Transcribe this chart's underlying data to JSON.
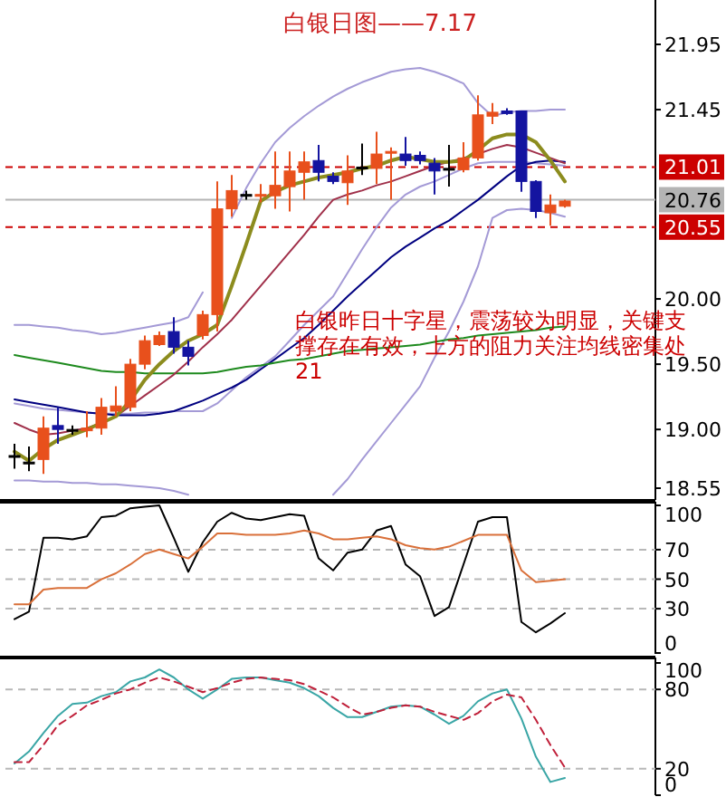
{
  "chart_data": [
    {
      "type": "candlestick",
      "title": "白银日图——7.17",
      "annotations": [
        "白银昨日十字星，震荡较为明显，关键支撑存在有效，上方的阻力关注均线密集处21"
      ],
      "categories": [
        null,
        null,
        null,
        null,
        null,
        null,
        null,
        null,
        null,
        null,
        null,
        null,
        null,
        null,
        null,
        null,
        null,
        null,
        null,
        null,
        null,
        null,
        null,
        null,
        null,
        null,
        null,
        null,
        null,
        null,
        null,
        null,
        null,
        null,
        null,
        null,
        null,
        null,
        null
      ],
      "ohlc": [
        [
          18.8,
          18.89,
          18.7,
          18.8
        ],
        [
          18.75,
          18.87,
          18.68,
          18.75
        ],
        [
          18.77,
          19.1,
          18.66,
          19.01
        ],
        [
          19.03,
          19.17,
          18.89,
          19.0
        ],
        [
          19.0,
          19.03,
          18.96,
          19.0
        ],
        [
          18.99,
          19.14,
          18.94,
          19.01
        ],
        [
          19.01,
          19.24,
          18.96,
          19.17
        ],
        [
          19.14,
          19.33,
          19.1,
          19.18
        ],
        [
          19.17,
          19.54,
          19.14,
          19.5
        ],
        [
          19.5,
          19.72,
          19.46,
          19.68
        ],
        [
          19.65,
          19.75,
          19.64,
          19.72
        ],
        [
          19.75,
          19.86,
          19.58,
          19.63
        ],
        [
          19.63,
          19.68,
          19.49,
          19.56
        ],
        [
          19.72,
          19.91,
          19.69,
          19.88
        ],
        [
          19.88,
          20.9,
          19.75,
          20.69
        ],
        [
          20.69,
          20.95,
          20.63,
          20.83
        ],
        [
          20.8,
          20.83,
          20.76,
          20.8
        ],
        [
          20.79,
          20.88,
          20.74,
          20.8
        ],
        [
          20.79,
          21.13,
          20.69,
          20.87
        ],
        [
          20.86,
          21.13,
          20.67,
          20.98
        ],
        [
          20.97,
          21.13,
          20.76,
          21.05
        ],
        [
          21.06,
          21.18,
          20.9,
          20.97
        ],
        [
          20.94,
          20.97,
          20.88,
          20.9
        ],
        [
          20.89,
          21.1,
          20.72,
          20.98
        ],
        [
          21.0,
          21.19,
          20.95,
          21.01
        ],
        [
          21.0,
          21.28,
          20.88,
          21.11
        ],
        [
          21.12,
          21.16,
          20.76,
          21.13
        ],
        [
          21.11,
          21.24,
          21.02,
          21.06
        ],
        [
          21.1,
          21.13,
          21.03,
          21.06
        ],
        [
          21.04,
          21.08,
          20.8,
          20.98
        ],
        [
          21.0,
          21.18,
          20.86,
          21.0
        ],
        [
          20.99,
          21.2,
          20.97,
          21.08
        ],
        [
          21.08,
          21.56,
          21.06,
          21.41
        ],
        [
          21.4,
          21.5,
          21.34,
          21.43
        ],
        [
          21.44,
          21.46,
          21.41,
          21.42
        ],
        [
          21.44,
          21.44,
          20.82,
          20.9
        ],
        [
          20.9,
          20.91,
          20.62,
          20.67
        ],
        [
          20.66,
          20.8,
          20.56,
          20.72
        ],
        [
          20.71,
          20.76,
          20.7,
          20.75
        ]
      ],
      "colors": [
        "#000000",
        "#000000",
        "#e8501c",
        "#1414a0",
        "#000000",
        "#e8501c",
        "#e8501c",
        "#e8501c",
        "#e8501c",
        "#e8501c",
        "#e8501c",
        "#1414a0",
        "#1414a0",
        "#e8501c",
        "#e8501c",
        "#e8501c",
        "#000000",
        "#e8501c",
        "#e8501c",
        "#e8501c",
        "#e8501c",
        "#1414a0",
        "#1414a0",
        "#e8501c",
        "#000000",
        "#e8501c",
        "#e8501c",
        "#1414a0",
        "#1414a0",
        "#1414a0",
        "#000000",
        "#e8501c",
        "#e8501c",
        "#e8501c",
        "#1414a0",
        "#1414a0",
        "#1414a0",
        "#e8501c",
        "#e8501c"
      ],
      "series": [
        {
          "type": "line",
          "color": "#a49ad6",
          "values": [
            19.8,
            19.8,
            19.79,
            19.78,
            19.76,
            19.75,
            19.73,
            19.74,
            19.76,
            19.78,
            19.8,
            19.82,
            19.86,
            20.05,
            null,
            20.62,
            20.85,
            21.04,
            21.2,
            21.31,
            21.4,
            21.48,
            21.55,
            21.61,
            21.66,
            21.7,
            21.74,
            21.76,
            21.77,
            21.74,
            21.7,
            21.65,
            21.5,
            21.4,
            21.43,
            21.44,
            21.44,
            21.45,
            21.45
          ]
        },
        {
          "type": "line",
          "color": "#a49ad6",
          "values": [
            19.2,
            19.18,
            19.16,
            19.15,
            19.14,
            19.13,
            19.12,
            19.12,
            19.12,
            19.13,
            19.13,
            19.14,
            19.14,
            19.14,
            19.2,
            19.3,
            19.4,
            19.48,
            19.56,
            19.68,
            19.8,
            19.91,
            20.02,
            20.2,
            20.38,
            20.55,
            20.7,
            20.8,
            20.86,
            20.9,
            20.95,
            21.0,
            21.04,
            21.05,
            21.05,
            21.05,
            21.04,
            21.03,
            21.02
          ]
        },
        {
          "type": "line",
          "color": "#a49ad6",
          "values": [
            18.61,
            18.61,
            18.6,
            18.6,
            18.59,
            18.59,
            18.58,
            18.58,
            18.57,
            18.56,
            18.55,
            18.53,
            18.5,
            null,
            null,
            null,
            null,
            null,
            null,
            null,
            null,
            null,
            18.5,
            18.62,
            18.77,
            18.91,
            19.05,
            19.19,
            19.33,
            19.55,
            19.75,
            19.98,
            20.25,
            20.62,
            20.68,
            20.69,
            20.68,
            20.66,
            20.63
          ]
        },
        {
          "type": "line",
          "color": "#000080",
          "values": [
            19.23,
            19.21,
            19.19,
            19.17,
            19.15,
            19.13,
            19.12,
            19.11,
            19.11,
            19.11,
            19.12,
            19.14,
            19.18,
            19.22,
            19.27,
            19.32,
            19.38,
            19.46,
            19.54,
            19.62,
            19.7,
            19.8,
            19.91,
            20.02,
            20.12,
            20.22,
            20.32,
            20.4,
            20.47,
            20.54,
            20.6,
            20.68,
            20.76,
            20.85,
            20.94,
            21.02,
            21.05,
            21.06,
            21.05
          ]
        },
        {
          "type": "line",
          "color": "#1e8a1e",
          "values": [
            19.57,
            19.55,
            19.53,
            19.51,
            19.49,
            19.47,
            19.45,
            19.44,
            19.44,
            19.43,
            19.43,
            19.43,
            19.43,
            19.43,
            19.44,
            19.46,
            19.48,
            19.49,
            19.51,
            19.53,
            19.54,
            19.56,
            19.58,
            19.6,
            19.61,
            19.62,
            19.63,
            19.64,
            19.65,
            19.67,
            19.69,
            19.7,
            19.72,
            19.73,
            19.74,
            19.75,
            19.76,
            19.78,
            19.79
          ]
        },
        {
          "type": "line",
          "color": "#a0304a",
          "values": [
            19.05,
            19.0,
            18.96,
            18.97,
            18.99,
            19.01,
            19.05,
            19.1,
            19.18,
            19.26,
            19.34,
            19.42,
            19.52,
            19.63,
            19.73,
            19.84,
            19.97,
            20.1,
            20.23,
            20.36,
            20.49,
            20.63,
            20.76,
            20.8,
            20.83,
            20.87,
            20.9,
            20.94,
            20.98,
            21.02,
            21.05,
            21.08,
            21.11,
            21.15,
            21.18,
            21.16,
            21.12,
            21.08,
            21.04
          ]
        },
        {
          "type": "line",
          "color": "#8c8c1e",
          "values": [
            18.83,
            18.76,
            18.85,
            18.92,
            18.96,
            19.0,
            19.05,
            19.1,
            19.22,
            19.38,
            19.5,
            19.6,
            19.68,
            19.73,
            19.8,
            20.1,
            20.42,
            20.75,
            20.82,
            20.87,
            20.9,
            20.93,
            20.95,
            20.97,
            21.0,
            21.02,
            21.06,
            21.09,
            21.07,
            21.05,
            21.05,
            21.06,
            21.14,
            21.23,
            21.26,
            21.26,
            21.2,
            21.06,
            20.9
          ]
        }
      ],
      "ylim": [
        18.46,
        22.29
      ],
      "yticks": [
        18.55,
        {
          "value": 19,
          "label": "19.00"
        },
        {
          "value": 19.5,
          "label": "19.50"
        },
        {
          "value": 20,
          "label": "20.00"
        },
        21.45,
        21.95
      ],
      "ref_lines": [
        {
          "axis": "y",
          "value": 21.01,
          "label": "21.01",
          "color": "#cc0000",
          "line_style": "dashed"
        },
        {
          "axis": "y",
          "value": 20.55,
          "label": "20.55",
          "color": "#cc0000",
          "line_style": "dashed"
        },
        {
          "axis": "y",
          "value": 20.76,
          "label": "20.76",
          "color": "#b4b4b4",
          "line_style": "solid"
        }
      ]
    },
    {
      "type": "line",
      "categories": [
        null,
        null,
        null,
        null,
        null,
        null,
        null,
        null,
        null,
        null,
        null,
        null,
        null,
        null,
        null,
        null,
        null,
        null,
        null,
        null,
        null,
        null,
        null,
        null,
        null,
        null,
        null,
        null,
        null,
        null,
        null,
        null,
        null,
        null,
        null,
        null,
        null,
        null,
        null
      ],
      "series": [
        {
          "color": "#000000",
          "values": [
            23,
            28,
            78,
            78,
            77,
            79,
            92,
            93,
            98,
            99,
            100,
            78,
            55,
            75,
            89,
            95,
            91,
            90,
            92,
            94,
            93,
            64,
            56,
            68,
            70,
            83,
            86,
            60,
            52,
            25,
            31,
            60,
            89,
            92,
            92,
            21,
            14,
            20,
            27
          ]
        },
        {
          "color": "#d9703a",
          "values": [
            33,
            33,
            43,
            44,
            44,
            44,
            50,
            54,
            60,
            67,
            70,
            67,
            64,
            72,
            81,
            81,
            80,
            80,
            80,
            81,
            83,
            81,
            77,
            77,
            78,
            79,
            77,
            73,
            71,
            70,
            72,
            76,
            80,
            80,
            80,
            56,
            48,
            49,
            50
          ]
        }
      ],
      "ylim": [
        0,
        100
      ],
      "yticks": [
        0,
        30,
        50,
        70,
        100
      ],
      "grid": "y"
    },
    {
      "type": "line",
      "categories": [
        null,
        null,
        null,
        null,
        null,
        null,
        null,
        null,
        null,
        null,
        null,
        null,
        null,
        null,
        null,
        null,
        null,
        null,
        null,
        null,
        null,
        null,
        null,
        null,
        null,
        null,
        null,
        null,
        null,
        null,
        null,
        null,
        null,
        null,
        null,
        null,
        null,
        null,
        null
      ],
      "series": [
        {
          "color": "#3aa6a6",
          "line_style": "solid",
          "values": [
            24,
            33,
            47,
            60,
            69,
            70,
            75,
            78,
            86,
            89,
            95,
            89,
            80,
            73,
            80,
            88,
            89,
            89,
            87,
            85,
            81,
            75,
            66,
            59,
            59,
            63,
            67,
            68,
            67,
            61,
            54,
            60,
            71,
            77,
            80,
            58,
            29,
            10,
            13
          ]
        },
        {
          "color": "#c0203a",
          "line_style": "dashed",
          "values": [
            25,
            25,
            38,
            53,
            60,
            68,
            72,
            77,
            80,
            85,
            89,
            86,
            82,
            78,
            81,
            85,
            88,
            89,
            88,
            87,
            84,
            79,
            74,
            67,
            61,
            63,
            66,
            68,
            67,
            63,
            60,
            57,
            62,
            71,
            76,
            74,
            57,
            38,
            21
          ]
        }
      ],
      "ylim": [
        0,
        100
      ],
      "yticks": [
        0,
        20,
        80,
        100
      ],
      "grid": "y"
    }
  ]
}
